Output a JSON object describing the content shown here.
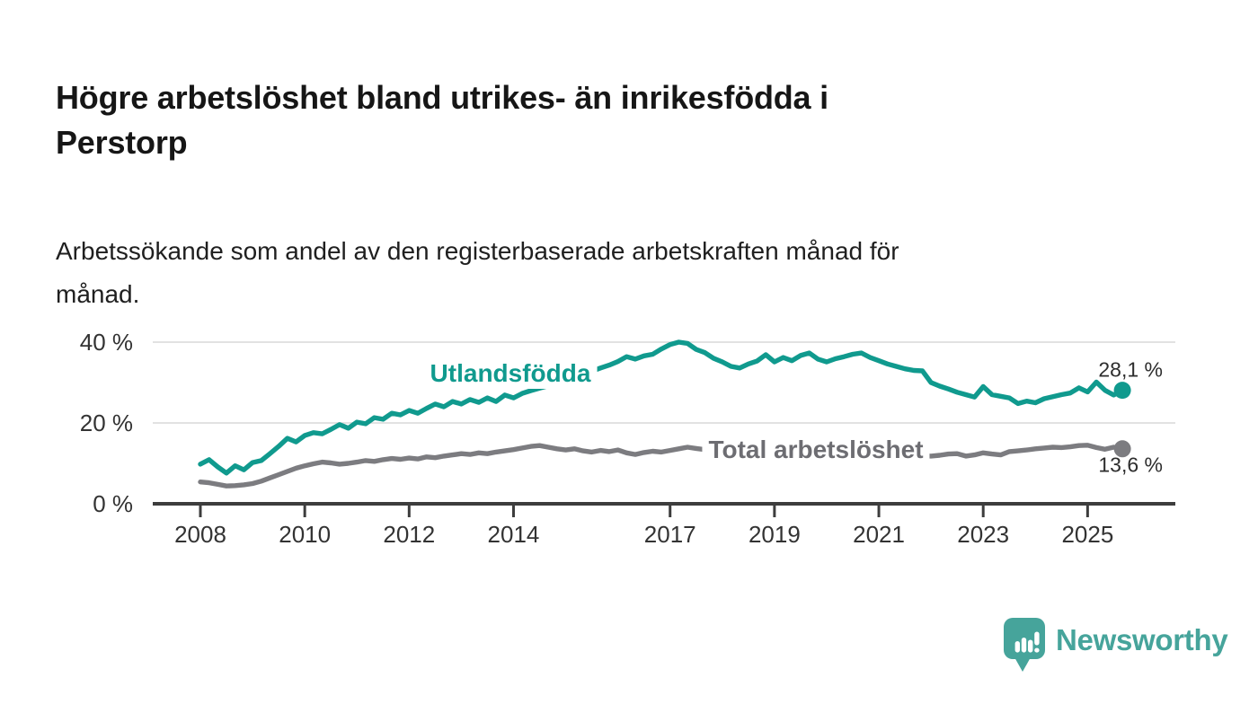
{
  "header": {
    "title": "Högre arbetslöshet bland utrikes- än inrikesfödda i\nPerstorp",
    "subtitle": "Arbetssökande som andel av den registerbaserade arbetskraften månad för\nmånad."
  },
  "chart_data": {
    "type": "line",
    "x_start": 2008.0,
    "x_step_years": 0.16667,
    "x_axis": {
      "tick_years": [
        2008,
        2010,
        2012,
        2014,
        2017,
        2019,
        2021,
        2023,
        2025
      ],
      "range": [
        2007.1,
        2026.7
      ]
    },
    "y_axis": {
      "ticks": [
        {
          "value": 0,
          "label": "0 %"
        },
        {
          "value": 20,
          "label": "20 %"
        },
        {
          "value": 40,
          "label": "40 %"
        }
      ],
      "ylim": [
        0,
        42
      ],
      "grid": "horizontal"
    },
    "series": [
      {
        "name": "Utlandsfödda",
        "color": "#109a8e",
        "end_label": "28,1 %",
        "end_value": 28.1,
        "values": [
          9.8,
          10.9,
          9.1,
          7.6,
          9.4,
          8.4,
          10.2,
          10.7,
          12.4,
          14.2,
          16.2,
          15.3,
          16.9,
          17.6,
          17.3,
          18.4,
          19.6,
          18.7,
          20.2,
          19.8,
          21.3,
          20.9,
          22.4,
          22.0,
          23.1,
          22.4,
          23.6,
          24.7,
          24.0,
          25.3,
          24.7,
          25.8,
          25.1,
          26.2,
          25.3,
          26.9,
          26.2,
          27.3,
          28.0,
          28.6,
          29.2,
          29.8,
          30.4,
          31.2,
          32.0,
          32.8,
          33.6,
          34.3,
          35.2,
          36.4,
          35.8,
          36.6,
          37.0,
          38.3,
          39.4,
          40.0,
          39.7,
          38.2,
          37.4,
          36.0,
          35.1,
          34.0,
          33.6,
          34.6,
          35.3,
          36.9,
          35.1,
          36.2,
          35.4,
          36.7,
          37.3,
          35.8,
          35.1,
          35.9,
          36.4,
          37.0,
          37.3,
          36.2,
          35.4,
          34.6,
          34.0,
          33.4,
          33.0,
          32.9,
          30.0,
          29.1,
          28.4,
          27.6,
          27.0,
          26.4,
          29.0,
          27.0,
          26.6,
          26.2,
          24.8,
          25.4,
          25.0,
          26.0,
          26.5,
          27.0,
          27.4,
          28.7,
          27.7,
          30.1,
          28.1,
          26.9,
          28.1
        ]
      },
      {
        "name": "Total arbetslöshet",
        "color": "#7c7c80",
        "end_label": "13,6 %",
        "end_value": 13.6,
        "values": [
          5.4,
          5.2,
          4.8,
          4.4,
          4.5,
          4.7,
          5.0,
          5.6,
          6.4,
          7.2,
          8.0,
          8.8,
          9.4,
          9.9,
          10.3,
          10.1,
          9.8,
          10.0,
          10.3,
          10.7,
          10.5,
          10.9,
          11.2,
          11.0,
          11.3,
          11.1,
          11.6,
          11.4,
          11.8,
          12.1,
          12.4,
          12.2,
          12.6,
          12.4,
          12.8,
          13.1,
          13.4,
          13.8,
          14.2,
          14.4,
          14.0,
          13.6,
          13.3,
          13.6,
          13.1,
          12.8,
          13.2,
          12.9,
          13.3,
          12.6,
          12.2,
          12.7,
          13.0,
          12.8,
          13.2,
          13.6,
          14.0,
          13.7,
          13.4,
          13.6,
          13.8,
          13.5,
          13.2,
          13.4,
          13.1,
          13.3,
          13.5,
          13.2,
          13.0,
          13.3,
          13.1,
          13.4,
          13.6,
          13.9,
          14.1,
          13.8,
          13.5,
          13.2,
          13.0,
          12.7,
          12.5,
          12.2,
          12.0,
          11.9,
          11.8,
          12.0,
          12.3,
          12.4,
          11.8,
          12.1,
          12.6,
          12.3,
          12.1,
          12.9,
          13.1,
          13.3,
          13.6,
          13.8,
          14.0,
          13.9,
          14.1,
          14.4,
          14.5,
          13.9,
          13.5,
          14.0,
          13.6
        ]
      }
    ],
    "title": "Högre arbetslöshet bland utrikes- än inrikesfödda i Perstorp",
    "xlabel": "",
    "ylabel": ""
  },
  "footer": {
    "brand": "Newsworthy",
    "logo_color": "#46a49b"
  }
}
